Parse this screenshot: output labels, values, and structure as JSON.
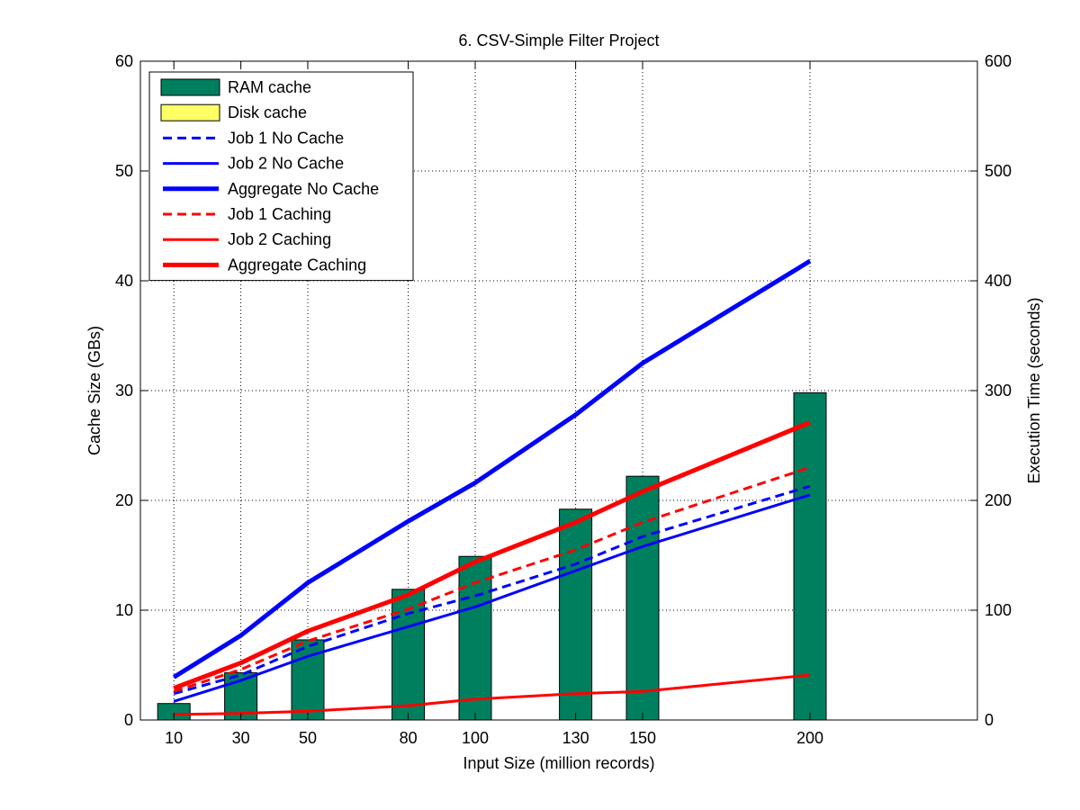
{
  "chart_data": {
    "type": "bar",
    "title": "6. CSV-Simple Filter Project",
    "xlabel": "Input Size (million records)",
    "ylabel_left": "Cache Size (GBs)",
    "ylabel_right": "Execution Time (seconds)",
    "x": [
      10,
      30,
      50,
      80,
      100,
      130,
      150,
      200
    ],
    "xlim": [
      0,
      250
    ],
    "ylim_left": [
      0,
      60
    ],
    "ylim_right": [
      0,
      600
    ],
    "yticks_left": [
      0,
      10,
      20,
      30,
      40,
      50,
      60
    ],
    "yticks_right": [
      0,
      100,
      200,
      300,
      400,
      500,
      600
    ],
    "grid": true,
    "legend_position": "top-left",
    "bar_series": [
      {
        "name": "RAM cache",
        "axis": "left",
        "color": "#007f5f",
        "values": [
          1.5,
          4.3,
          7.3,
          11.9,
          14.9,
          19.2,
          22.2,
          29.8
        ]
      },
      {
        "name": "Disk cache",
        "axis": "left",
        "color": "#ffff66",
        "values": [
          0,
          0,
          0,
          0,
          0,
          0,
          0,
          0
        ]
      }
    ],
    "line_series": [
      {
        "name": "Job 1 No Cache",
        "axis": "right",
        "color": "#0000ff",
        "style": "dashed",
        "width": 3,
        "values": [
          24,
          41,
          67,
          97,
          113,
          142,
          167,
          213
        ]
      },
      {
        "name": "Job 2 No Cache",
        "axis": "right",
        "color": "#0000ff",
        "style": "solid",
        "width": 3,
        "values": [
          17,
          36,
          58,
          85,
          103,
          136,
          158,
          205
        ]
      },
      {
        "name": "Aggregate No Cache",
        "axis": "right",
        "color": "#0000ff",
        "style": "solid",
        "width": 5,
        "values": [
          39,
          77,
          125,
          181,
          216,
          278,
          325,
          418
        ]
      },
      {
        "name": "Job 1 Caching",
        "axis": "right",
        "color": "#ff0000",
        "style": "dashed",
        "width": 3,
        "values": [
          26,
          46,
          72,
          101,
          125,
          155,
          180,
          230
        ]
      },
      {
        "name": "Job 2 Caching",
        "axis": "right",
        "color": "#ff0000",
        "style": "solid",
        "width": 3,
        "values": [
          5,
          6,
          8,
          13,
          19,
          24,
          26,
          41
        ]
      },
      {
        "name": "Aggregate Caching",
        "axis": "right",
        "color": "#ff0000",
        "style": "solid",
        "width": 5,
        "values": [
          29,
          52,
          81,
          114,
          144,
          180,
          208,
          271
        ]
      }
    ]
  }
}
